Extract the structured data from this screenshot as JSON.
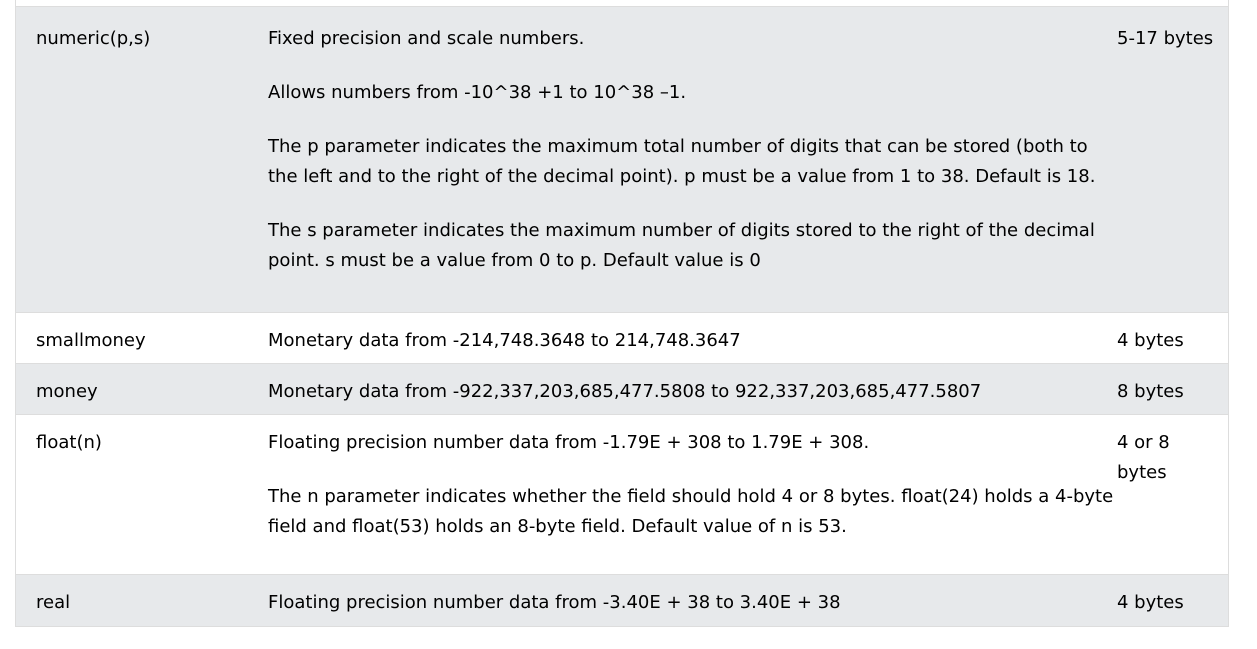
{
  "rows": [
    {
      "type": "numeric(p,s)",
      "paragraphs": [
        "Fixed precision and scale numbers.",
        "Allows numbers from -10^38 +1 to 10^38 –1.",
        "The p parameter indicates the maximum total number of digits that can be stored (both to the left and to the right of the decimal point). p must be a value from 1 to 38. Default is 18.",
        "The s parameter indicates the maximum number of digits stored to the right of the decimal point. s must be a value from 0 to p. Default value is 0"
      ],
      "storage": "5-17 bytes"
    },
    {
      "type": "smallmoney",
      "paragraphs": [
        "Monetary data from -214,748.3648 to 214,748.3647"
      ],
      "storage": "4 bytes"
    },
    {
      "type": "money",
      "paragraphs": [
        "Monetary data from -922,337,203,685,477.5808 to 922,337,203,685,477.5807"
      ],
      "storage": "8 bytes"
    },
    {
      "type": "float(n)",
      "paragraphs": [
        "Floating precision number data from -1.79E + 308 to 1.79E + 308.",
        "The n parameter indicates whether the field should hold 4 or 8 bytes. float(24) holds a 4-byte field and float(53) holds an 8-byte field. Default value of n is 53."
      ],
      "storage": "4 or 8 bytes"
    },
    {
      "type": "real",
      "paragraphs": [
        "Floating precision number data from -3.40E + 38 to 3.40E + 38"
      ],
      "storage": "4 bytes"
    }
  ]
}
